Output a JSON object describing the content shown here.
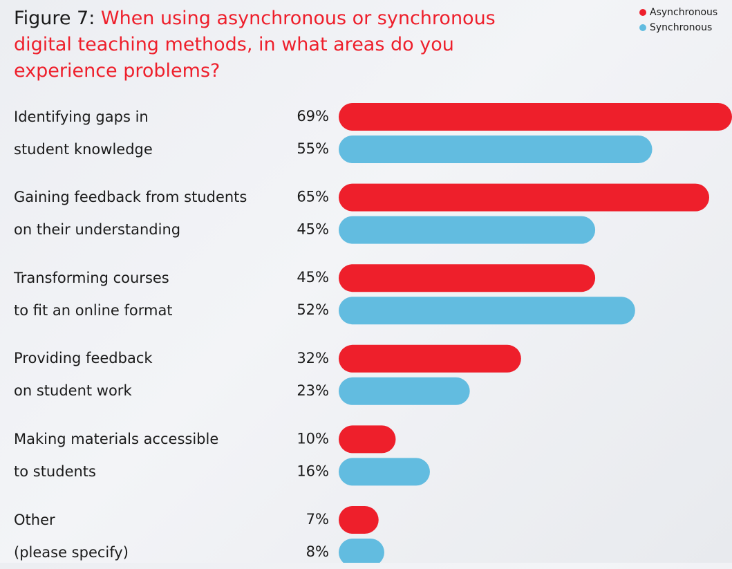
{
  "chart_data": {
    "type": "bar",
    "orientation": "horizontal",
    "figure_label": "Figure 7:",
    "title": "When using asynchronous or synchronous digital teaching methods, in what areas do you experience problems?",
    "categories": [
      "Identifying gaps in\nstudent knowledge",
      "Gaining feedback from students\non their understanding",
      "Transforming courses\nto fit an online format",
      "Providing feedback\non student work",
      "Making materials accessible\nto students",
      "Other\n(please specify)"
    ],
    "series": [
      {
        "name": "Asynchronous",
        "color": "#ee1f2b",
        "values": [
          69,
          65,
          45,
          32,
          10,
          7
        ],
        "value_labels": [
          "69%",
          "65%",
          "45%",
          "32%",
          "10%",
          "7%"
        ]
      },
      {
        "name": "Synchronous",
        "color": "#62bce0",
        "values": [
          55,
          45,
          52,
          23,
          16,
          8
        ],
        "value_labels": [
          "55%",
          "45%",
          "52%",
          "23%",
          "16%",
          "8%"
        ]
      }
    ],
    "legend": "top-right"
  }
}
